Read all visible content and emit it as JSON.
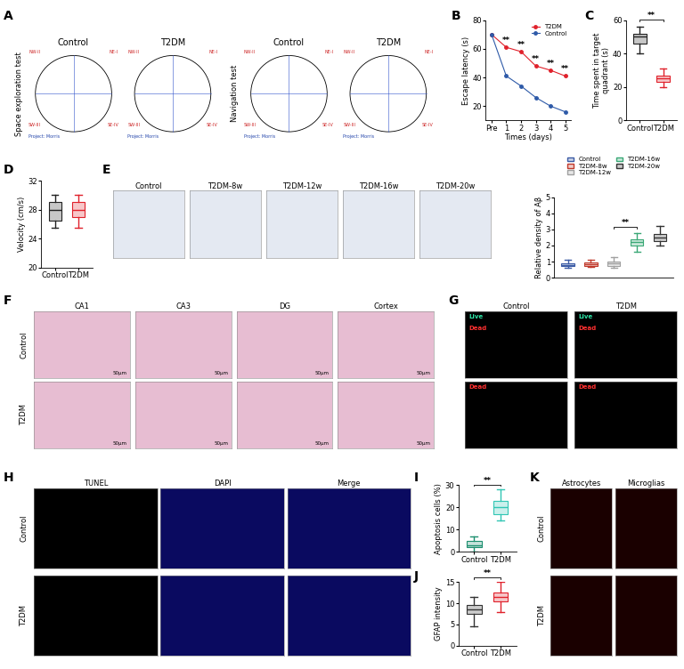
{
  "panels": [
    "A",
    "B",
    "C",
    "D",
    "E",
    "F",
    "G",
    "H",
    "I",
    "J",
    "K"
  ],
  "chart_data": [
    {
      "panel": "B",
      "type": "line",
      "xlabel": "Times (days)",
      "ylabel": "Escape latency (s)",
      "categories": [
        "Pre",
        "1",
        "2",
        "3",
        "4",
        "5"
      ],
      "series": [
        {
          "name": "T2DM",
          "color": "#e0212b",
          "marker": "o",
          "values": [
            70,
            61,
            58,
            48,
            45,
            41
          ]
        },
        {
          "name": "Control",
          "color": "#2e5aa8",
          "marker": "o",
          "values": [
            70,
            41,
            34,
            26,
            20,
            16
          ]
        }
      ],
      "ylim": [
        10,
        80
      ],
      "yticks": [
        20,
        40,
        60,
        80
      ],
      "legend": "upper right",
      "annotations": [
        {
          "text": "**",
          "category": "1"
        },
        {
          "text": "**",
          "category": "2"
        },
        {
          "text": "**",
          "category": "3"
        },
        {
          "text": "**",
          "category": "4"
        },
        {
          "text": "**",
          "category": "5"
        }
      ]
    },
    {
      "panel": "C",
      "type": "box",
      "ylabel": "Time spent in target\nquadrant (s)",
      "categories": [
        "Control",
        "T2DM"
      ],
      "colors": [
        "#222222",
        "#e0212b"
      ],
      "stats": [
        {
          "min": 40,
          "q1": 46,
          "median": 50,
          "q3": 52,
          "max": 56
        },
        {
          "min": 20,
          "q1": 23,
          "median": 25,
          "q3": 27,
          "max": 31
        }
      ],
      "ylim": [
        0,
        60
      ],
      "yticks": [
        0,
        20,
        40,
        60
      ],
      "annotations": [
        {
          "text": "**",
          "between": [
            "Control",
            "T2DM"
          ]
        }
      ]
    },
    {
      "panel": "D",
      "type": "box",
      "ylabel": "Velocity (cm/s)",
      "categories": [
        "Control",
        "T2DM"
      ],
      "colors": [
        "#222222",
        "#e0212b"
      ],
      "stats": [
        {
          "min": 25.5,
          "q1": 26.5,
          "median": 28,
          "q3": 29,
          "max": 30
        },
        {
          "min": 25.5,
          "q1": 27,
          "median": 28,
          "q3": 29,
          "max": 30
        }
      ],
      "ylim": [
        20,
        32
      ],
      "yticks": [
        20,
        24,
        28,
        32
      ]
    },
    {
      "panel": "E",
      "type": "box",
      "ylabel": "Relative density of Aβ",
      "categories": [
        "Control",
        "T2DM-8w",
        "T2DM-12w",
        "T2DM-16w",
        "T2DM-20w"
      ],
      "colors": [
        "#3b5ba5",
        "#c0392b",
        "#a0a0a0",
        "#3aa876",
        "#333333"
      ],
      "stats": [
        {
          "min": 0.6,
          "q1": 0.7,
          "median": 0.8,
          "q3": 0.9,
          "max": 1.1
        },
        {
          "min": 0.65,
          "q1": 0.75,
          "median": 0.85,
          "q3": 0.95,
          "max": 1.1
        },
        {
          "min": 0.6,
          "q1": 0.75,
          "median": 0.9,
          "q3": 1.0,
          "max": 1.3
        },
        {
          "min": 1.6,
          "q1": 2.0,
          "median": 2.2,
          "q3": 2.4,
          "max": 2.8
        },
        {
          "min": 2.0,
          "q1": 2.3,
          "median": 2.5,
          "q3": 2.7,
          "max": 3.2
        }
      ],
      "ylim": [
        0,
        5
      ],
      "yticks": [
        0,
        1,
        2,
        3,
        4,
        5
      ],
      "legend": "upper center",
      "tick_labels": "y",
      "annotations": [
        {
          "text": "**",
          "between": [
            "T2DM-12w",
            "T2DM-16w"
          ]
        }
      ]
    },
    {
      "panel": "I",
      "type": "box",
      "ylabel": "Apoptosis cells (%)",
      "categories": [
        "Control",
        "T2DM"
      ],
      "colors": [
        "#1d8f6f",
        "#31c6b4"
      ],
      "stats": [
        {
          "min": 0,
          "q1": 2,
          "median": 3,
          "q3": 5,
          "max": 7
        },
        {
          "min": 14,
          "q1": 17,
          "median": 20,
          "q3": 23,
          "max": 28
        }
      ],
      "ylim": [
        0,
        30
      ],
      "yticks": [
        0,
        10,
        20,
        30
      ],
      "annotations": [
        {
          "text": "**",
          "between": [
            "Control",
            "T2DM"
          ]
        }
      ]
    },
    {
      "panel": "J",
      "type": "box",
      "ylabel": "GFAP intensity",
      "categories": [
        "Control",
        "T2DM"
      ],
      "colors": [
        "#333333",
        "#e0212b"
      ],
      "stats": [
        {
          "min": 4.5,
          "q1": 7.5,
          "median": 8.5,
          "q3": 9.5,
          "max": 11.5
        },
        {
          "min": 8,
          "q1": 10.5,
          "median": 11.5,
          "q3": 12.5,
          "max": 15
        }
      ],
      "ylim": [
        0,
        15
      ],
      "yticks": [
        0,
        5,
        10,
        15
      ],
      "annotations": [
        {
          "text": "**",
          "between": [
            "Control",
            "T2DM"
          ]
        }
      ]
    }
  ],
  "images": {
    "A": {
      "columns": [
        "Control",
        "T2DM",
        "Control",
        "T2DM"
      ],
      "rows": [
        "Space exploration test",
        "Navigation test"
      ],
      "quadrants": [
        "NW-II",
        "NE-I",
        "SW-III",
        "SE-IV"
      ],
      "project": "Project: Morris"
    },
    "E": {
      "columns": [
        "Control",
        "T2DM-8w",
        "T2DM-12w",
        "T2DM-16w",
        "T2DM-20w"
      ]
    },
    "F": {
      "columns": [
        "CA1",
        "CA3",
        "DG",
        "Cortex"
      ],
      "rows": [
        "Control",
        "T2DM"
      ],
      "scale_bar": "50μm"
    },
    "G": {
      "columns": [
        "Control",
        "T2DM"
      ],
      "rows": [
        [
          "Live",
          "Dead"
        ],
        [
          "Dead"
        ]
      ]
    },
    "H": {
      "columns": [
        "TUNEL",
        "DAPI",
        "Merge"
      ],
      "rows": [
        "Control",
        "T2DM"
      ]
    },
    "K": {
      "columns": [
        "Astrocytes",
        "Microglias"
      ],
      "rows": [
        "Control",
        "T2DM"
      ]
    }
  }
}
